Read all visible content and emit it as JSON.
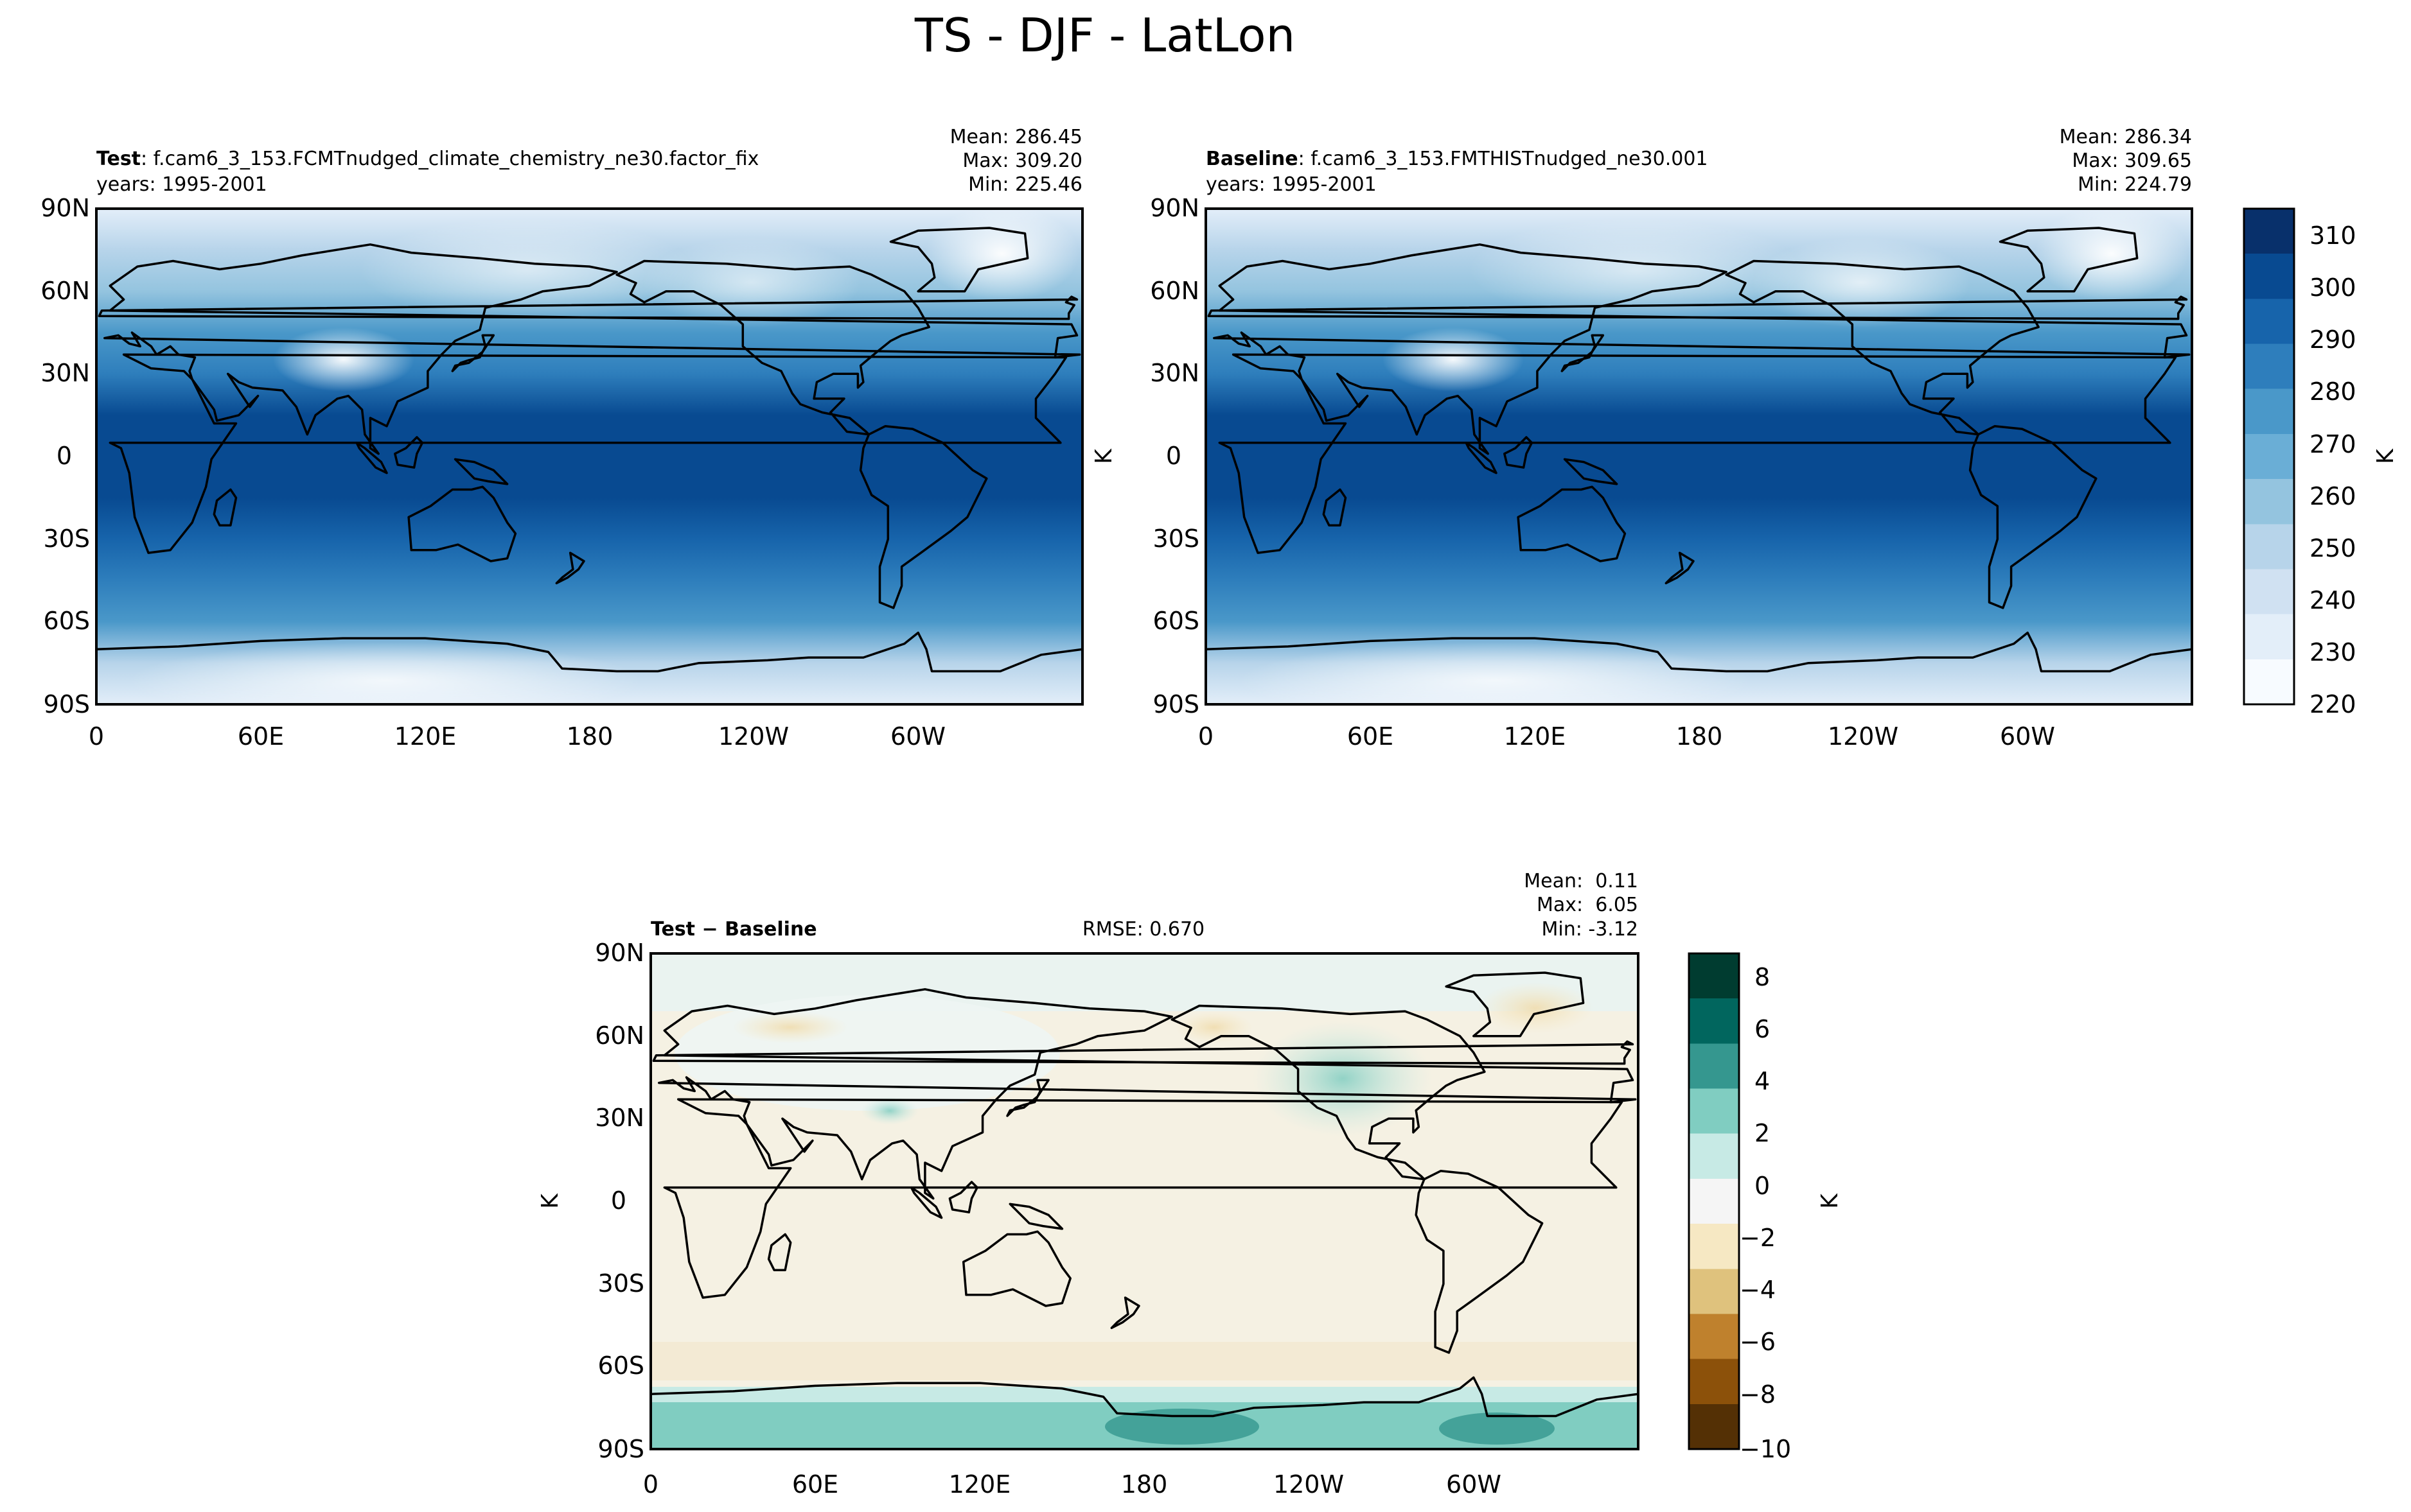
{
  "figure": {
    "title": "TS - DJF - LatLon"
  },
  "colors": {
    "sequential_blues": [
      "#f7fbff",
      "#e3eef9",
      "#d0e1f2",
      "#b7d4ea",
      "#94c4df",
      "#6aaed6",
      "#4a98c9",
      "#2e7ebc",
      "#1764ab",
      "#084a91",
      "#08306b"
    ],
    "diverging_brbg": [
      "#543005",
      "#8c510a",
      "#bf812d",
      "#dfc27d",
      "#f6e8c3",
      "#f5f5f5",
      "#c7eae5",
      "#80cdc1",
      "#35978f",
      "#01665e",
      "#003c30"
    ],
    "land_outline": "#000000"
  },
  "chart_data": [
    {
      "type": "heatmap",
      "panel": "test",
      "label_bold": "Test",
      "label_rest": ": f.cam6_3_153.FCMTnudged_climate_chemistry_ne30.factor_fix",
      "years": "years: 1995-2001",
      "stats": [
        "Mean: 286.45",
        "Max: 309.20",
        "Min: 225.46"
      ],
      "x_ticks": [
        "0",
        "60E",
        "120E",
        "180",
        "120W",
        "60W"
      ],
      "y_ticks": [
        "90N",
        "60N",
        "30N",
        "0",
        "30S",
        "60S",
        "90S"
      ],
      "xlim": [
        0,
        360
      ],
      "ylim": [
        -90,
        90
      ],
      "zonal_profile_K": {
        "lat": [
          90,
          75,
          60,
          45,
          30,
          15,
          0,
          -15,
          -30,
          -45,
          -60,
          -75,
          -90
        ],
        "value": [
          235,
          248,
          262,
          275,
          287,
          298,
          301,
          299,
          292,
          282,
          272,
          250,
          230
        ]
      }
    },
    {
      "type": "heatmap",
      "panel": "baseline",
      "label_bold": "Baseline",
      "label_rest": ": f.cam6_3_153.FMTHISTnudged_ne30.001",
      "years": "years: 1995-2001",
      "stats": [
        "Mean: 286.34",
        "Max: 309.65",
        "Min: 224.79"
      ],
      "ylabel": "K",
      "x_ticks": [
        "0",
        "60E",
        "120E",
        "180",
        "120W",
        "60W"
      ],
      "y_ticks": [
        "90N",
        "60N",
        "30N",
        "0",
        "30S",
        "60S",
        "90S"
      ],
      "xlim": [
        0,
        360
      ],
      "ylim": [
        -90,
        90
      ],
      "zonal_profile_K": {
        "lat": [
          90,
          75,
          60,
          45,
          30,
          15,
          0,
          -15,
          -30,
          -45,
          -60,
          -75,
          -90
        ],
        "value": [
          234,
          247,
          262,
          275,
          287,
          298,
          301,
          299,
          292,
          282,
          272,
          249,
          229
        ]
      },
      "colorbar": {
        "ticks": [
          "310",
          "300",
          "290",
          "280",
          "270",
          "260",
          "250",
          "240",
          "230",
          "220"
        ],
        "range": [
          220,
          315
        ],
        "label": "K"
      }
    },
    {
      "type": "heatmap",
      "panel": "diff",
      "label_bold_a": "Test",
      "label_minus": " − ",
      "label_bold_b": "Baseline",
      "rmse": "RMSE: 0.670",
      "stats": [
        "Mean:  0.11",
        "Max:  6.05",
        "Min: -3.12"
      ],
      "ylabel": "K",
      "x_ticks": [
        "0",
        "60E",
        "120E",
        "180",
        "120W",
        "60W"
      ],
      "y_ticks": [
        "90N",
        "60N",
        "30N",
        "0",
        "30S",
        "60S",
        "90S"
      ],
      "xlim": [
        0,
        360
      ],
      "ylim": [
        -90,
        90
      ],
      "colorbar": {
        "ticks": [
          "8",
          "6",
          "4",
          "2",
          "0",
          "−2",
          "−4",
          "−6",
          "−8",
          "−10"
        ],
        "range": [
          -10,
          9
        ],
        "label": "K"
      }
    }
  ]
}
